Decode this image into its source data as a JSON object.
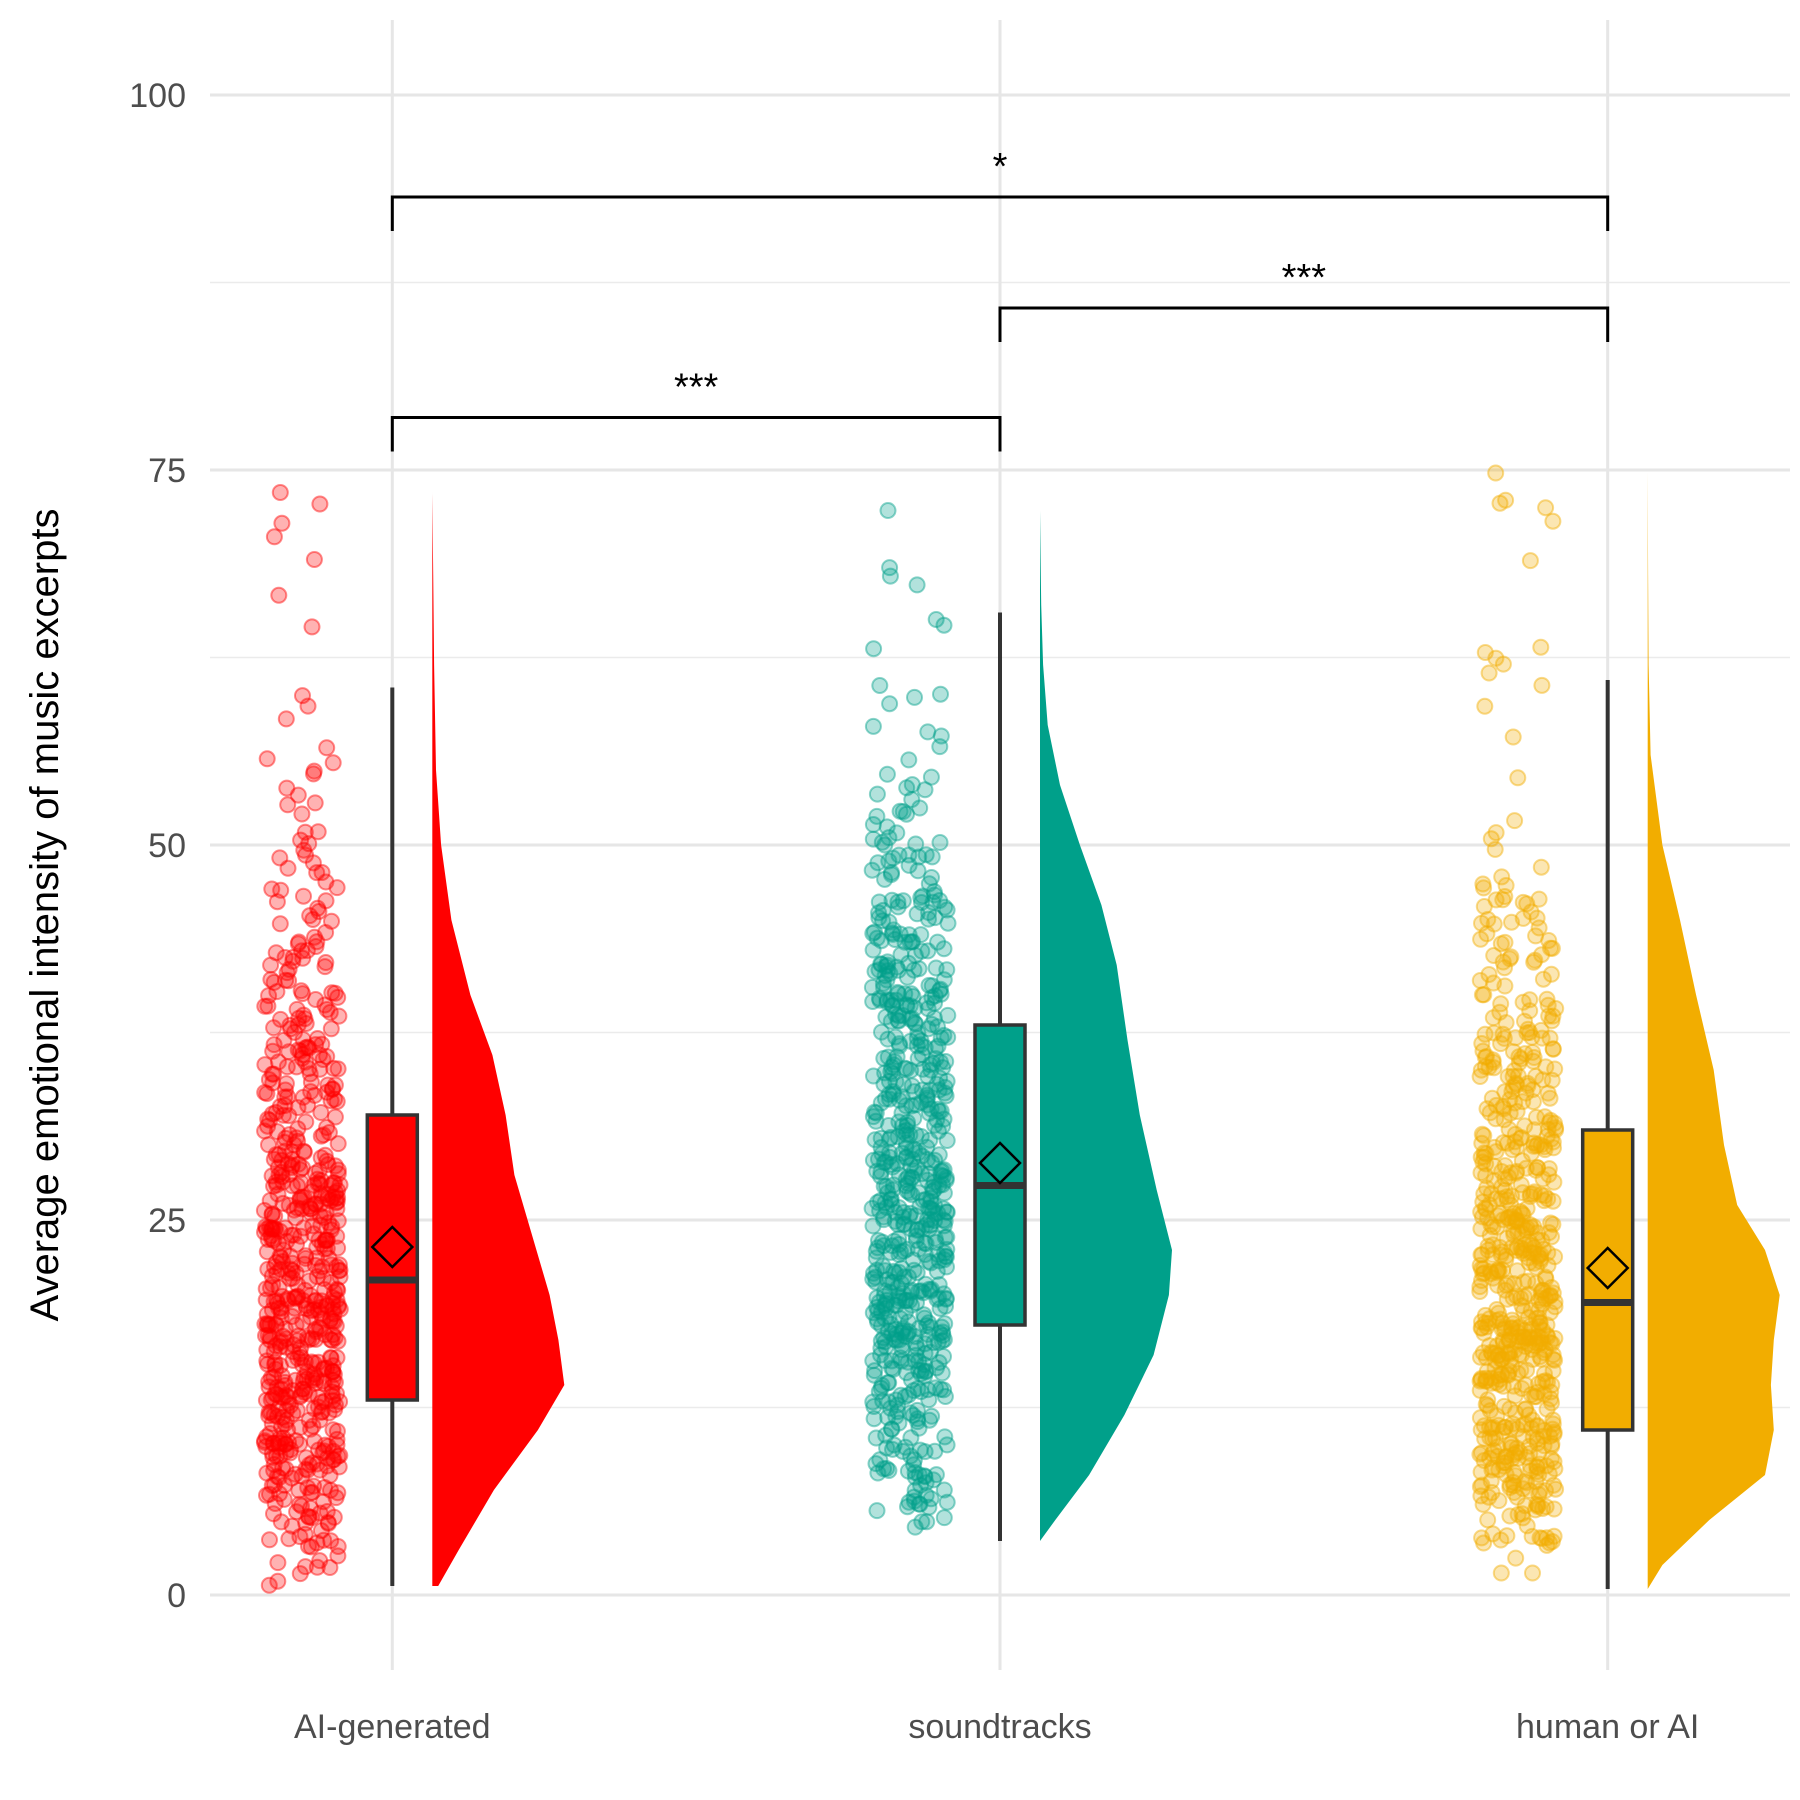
{
  "chart_data": {
    "type": "raincloud",
    "ylabel": "Average emotional intensity of music excerpts",
    "xlabel": "",
    "ylim": [
      -5,
      105
    ],
    "yticks": [
      0,
      25,
      50,
      75,
      100
    ],
    "grid": true,
    "categories": [
      "AI-generated",
      "soundtracks",
      "human or AI"
    ],
    "colors": [
      "#FF0000",
      "#00A08A",
      "#F2AD00"
    ],
    "series": [
      {
        "category": "AI-generated",
        "min": 0.6,
        "q1": 13.0,
        "median": 21.0,
        "q3": 32.0,
        "whisker_high": 60.5,
        "max": 73.5,
        "mean": 23.2,
        "density": [
          [
            0.6,
            0.04
          ],
          [
            3,
            0.18
          ],
          [
            7,
            0.42
          ],
          [
            11,
            0.72
          ],
          [
            14,
            0.9
          ],
          [
            17,
            0.86
          ],
          [
            20,
            0.8
          ],
          [
            24,
            0.68
          ],
          [
            28,
            0.56
          ],
          [
            32,
            0.5
          ],
          [
            36,
            0.41
          ],
          [
            40,
            0.26
          ],
          [
            45,
            0.13
          ],
          [
            50,
            0.06
          ],
          [
            55,
            0.025
          ],
          [
            62,
            0.012
          ],
          [
            68,
            0.006
          ],
          [
            73.5,
            0.0
          ]
        ]
      },
      {
        "category": "soundtracks",
        "min": 3.6,
        "q1": 18.0,
        "median": 27.3,
        "q3": 38.0,
        "whisker_high": 65.5,
        "max": 72.3,
        "mean": 28.8,
        "density": [
          [
            3.6,
            0.0
          ],
          [
            5,
            0.1
          ],
          [
            8,
            0.32
          ],
          [
            12,
            0.55
          ],
          [
            16,
            0.74
          ],
          [
            20,
            0.84
          ],
          [
            23,
            0.86
          ],
          [
            27,
            0.76
          ],
          [
            32,
            0.65
          ],
          [
            37,
            0.57
          ],
          [
            42,
            0.5
          ],
          [
            46,
            0.4
          ],
          [
            50,
            0.26
          ],
          [
            54,
            0.13
          ],
          [
            58,
            0.05
          ],
          [
            62,
            0.02
          ],
          [
            66,
            0.008
          ],
          [
            72.3,
            0.0
          ]
        ]
      },
      {
        "category": "human or AI",
        "min": 0.4,
        "q1": 11.0,
        "median": 19.5,
        "q3": 31.0,
        "whisker_high": 61.0,
        "max": 74.8,
        "mean": 21.8,
        "density": [
          [
            0.4,
            0.0
          ],
          [
            2,
            0.1
          ],
          [
            5,
            0.42
          ],
          [
            8,
            0.8
          ],
          [
            11,
            0.86
          ],
          [
            14,
            0.84
          ],
          [
            17,
            0.86
          ],
          [
            20,
            0.9
          ],
          [
            23,
            0.8
          ],
          [
            26,
            0.61
          ],
          [
            30,
            0.52
          ],
          [
            35,
            0.45
          ],
          [
            40,
            0.33
          ],
          [
            45,
            0.22
          ],
          [
            50,
            0.1
          ],
          [
            56,
            0.02
          ],
          [
            62,
            0.006
          ],
          [
            68,
            0.003
          ],
          [
            74.8,
            0.0
          ]
        ]
      }
    ],
    "comparisons": [
      {
        "from": "AI-generated",
        "to": "soundtracks",
        "label": "***",
        "y": 78.5
      },
      {
        "from": "soundtracks",
        "to": "human or AI",
        "label": "***",
        "y": 85.8
      },
      {
        "from": "AI-generated",
        "to": "human or AI",
        "label": "*",
        "y": 93.2
      }
    ]
  }
}
